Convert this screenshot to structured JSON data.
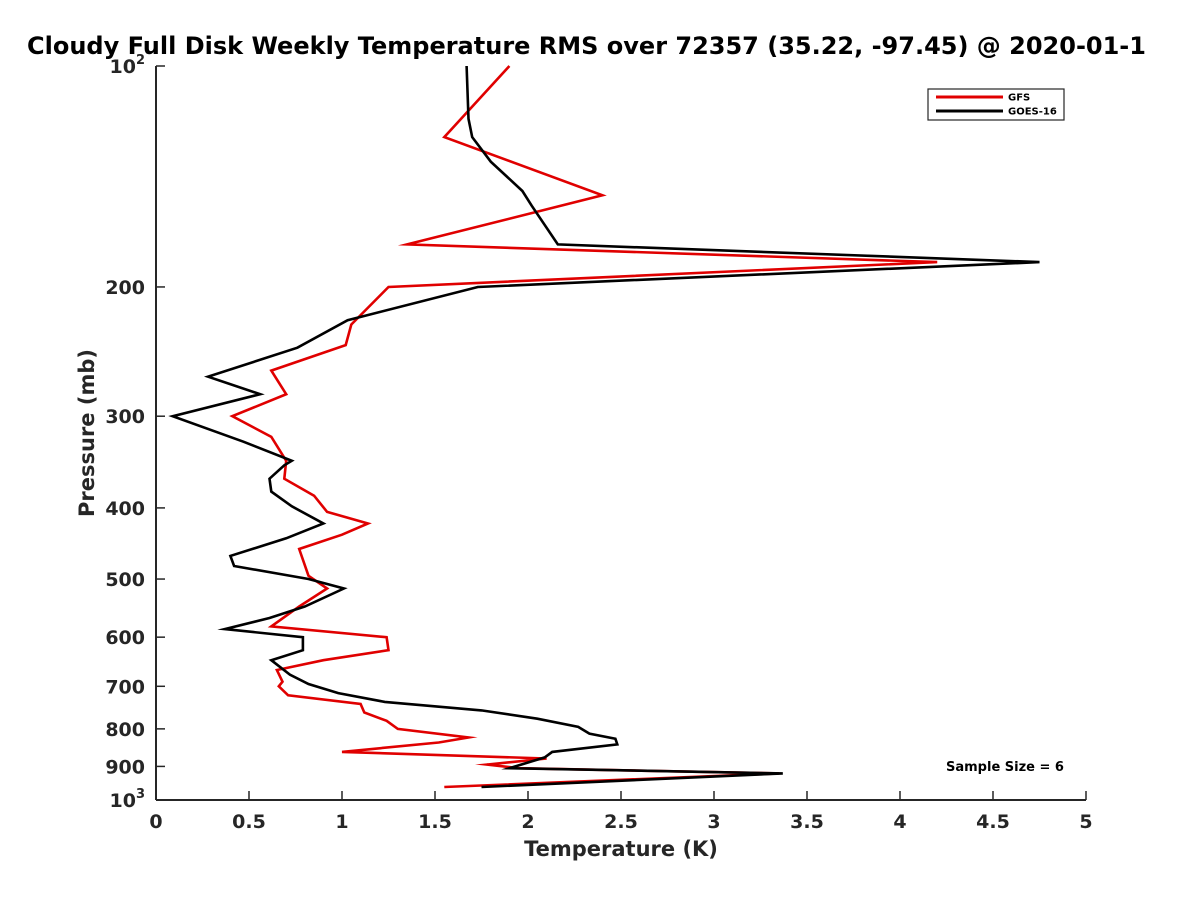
{
  "chart_data": {
    "type": "line",
    "title": "Cloudy Full Disk Weekly Temperature RMS over 72357 (35.22, -97.45) @ 2020-01-1",
    "xlabel": "Temperature (K)",
    "ylabel": "Pressure (mb)",
    "xlim": [
      0,
      5
    ],
    "ylim": [
      100,
      1000
    ],
    "y_scale": "log",
    "y_reversed": true,
    "x_ticks": [
      "0",
      "0.5",
      "1",
      "1.5",
      "2",
      "2.5",
      "3",
      "3.5",
      "4",
      "4.5",
      "5"
    ],
    "y_ticks": [
      {
        "value": 100,
        "base": "10",
        "exp": "2"
      },
      {
        "value": 200,
        "label": "200"
      },
      {
        "value": 300,
        "label": "300"
      },
      {
        "value": 400,
        "label": "400"
      },
      {
        "value": 500,
        "label": "500"
      },
      {
        "value": 600,
        "label": "600"
      },
      {
        "value": 700,
        "label": "700"
      },
      {
        "value": 800,
        "label": "800"
      },
      {
        "value": 900,
        "label": "900"
      },
      {
        "value": 1000,
        "base": "10",
        "exp": "3"
      }
    ],
    "legend_position": "top-right",
    "annotation": "Sample Size = 6",
    "series": [
      {
        "name": "GFS",
        "color": "#e00000",
        "points": [
          {
            "x": 1.9,
            "y": 100
          },
          {
            "x": 1.55,
            "y": 125
          },
          {
            "x": 2.4,
            "y": 150
          },
          {
            "x": 1.35,
            "y": 175
          },
          {
            "x": 4.2,
            "y": 185
          },
          {
            "x": 1.25,
            "y": 200
          },
          {
            "x": 1.05,
            "y": 225
          },
          {
            "x": 1.02,
            "y": 240
          },
          {
            "x": 0.62,
            "y": 260
          },
          {
            "x": 0.7,
            "y": 280
          },
          {
            "x": 0.41,
            "y": 300
          },
          {
            "x": 0.62,
            "y": 320
          },
          {
            "x": 0.7,
            "y": 345
          },
          {
            "x": 0.69,
            "y": 365
          },
          {
            "x": 0.85,
            "y": 385
          },
          {
            "x": 0.92,
            "y": 405
          },
          {
            "x": 1.14,
            "y": 420
          },
          {
            "x": 1.0,
            "y": 435
          },
          {
            "x": 0.77,
            "y": 455
          },
          {
            "x": 0.82,
            "y": 495
          },
          {
            "x": 0.92,
            "y": 515
          },
          {
            "x": 0.77,
            "y": 545
          },
          {
            "x": 0.62,
            "y": 580
          },
          {
            "x": 1.24,
            "y": 600
          },
          {
            "x": 1.25,
            "y": 625
          },
          {
            "x": 0.9,
            "y": 645
          },
          {
            "x": 0.65,
            "y": 665
          },
          {
            "x": 0.68,
            "y": 690
          },
          {
            "x": 0.66,
            "y": 700
          },
          {
            "x": 0.71,
            "y": 720
          },
          {
            "x": 1.1,
            "y": 740
          },
          {
            "x": 1.12,
            "y": 760
          },
          {
            "x": 1.24,
            "y": 780
          },
          {
            "x": 1.3,
            "y": 800
          },
          {
            "x": 1.68,
            "y": 822
          },
          {
            "x": 1.52,
            "y": 835
          },
          {
            "x": 1.0,
            "y": 860
          },
          {
            "x": 2.1,
            "y": 878
          },
          {
            "x": 1.78,
            "y": 895
          },
          {
            "x": 1.95,
            "y": 905
          },
          {
            "x": 3.35,
            "y": 920
          },
          {
            "x": 1.55,
            "y": 960
          }
        ]
      },
      {
        "name": "GOES-16",
        "color": "#000000",
        "points": [
          {
            "x": 1.67,
            "y": 100
          },
          {
            "x": 1.68,
            "y": 118
          },
          {
            "x": 1.7,
            "y": 125
          },
          {
            "x": 1.8,
            "y": 135
          },
          {
            "x": 1.97,
            "y": 148
          },
          {
            "x": 2.02,
            "y": 155
          },
          {
            "x": 2.16,
            "y": 175
          },
          {
            "x": 4.75,
            "y": 185
          },
          {
            "x": 1.73,
            "y": 200
          },
          {
            "x": 1.03,
            "y": 222
          },
          {
            "x": 0.76,
            "y": 242
          },
          {
            "x": 0.28,
            "y": 265
          },
          {
            "x": 0.56,
            "y": 280
          },
          {
            "x": 0.09,
            "y": 300
          },
          {
            "x": 0.47,
            "y": 325
          },
          {
            "x": 0.73,
            "y": 345
          },
          {
            "x": 0.69,
            "y": 350
          },
          {
            "x": 0.61,
            "y": 365
          },
          {
            "x": 0.62,
            "y": 380
          },
          {
            "x": 0.73,
            "y": 398
          },
          {
            "x": 0.9,
            "y": 420
          },
          {
            "x": 0.7,
            "y": 440
          },
          {
            "x": 0.4,
            "y": 465
          },
          {
            "x": 0.42,
            "y": 480
          },
          {
            "x": 0.82,
            "y": 500
          },
          {
            "x": 1.01,
            "y": 515
          },
          {
            "x": 0.8,
            "y": 545
          },
          {
            "x": 0.61,
            "y": 565
          },
          {
            "x": 0.37,
            "y": 585
          },
          {
            "x": 0.79,
            "y": 600
          },
          {
            "x": 0.79,
            "y": 625
          },
          {
            "x": 0.62,
            "y": 645
          },
          {
            "x": 0.72,
            "y": 675
          },
          {
            "x": 0.82,
            "y": 695
          },
          {
            "x": 0.98,
            "y": 715
          },
          {
            "x": 1.23,
            "y": 735
          },
          {
            "x": 1.75,
            "y": 755
          },
          {
            "x": 2.05,
            "y": 775
          },
          {
            "x": 2.27,
            "y": 795
          },
          {
            "x": 2.33,
            "y": 812
          },
          {
            "x": 2.47,
            "y": 825
          },
          {
            "x": 2.48,
            "y": 840
          },
          {
            "x": 2.13,
            "y": 860
          },
          {
            "x": 2.09,
            "y": 875
          },
          {
            "x": 1.9,
            "y": 905
          },
          {
            "x": 3.37,
            "y": 920
          },
          {
            "x": 1.75,
            "y": 960
          }
        ]
      }
    ]
  }
}
